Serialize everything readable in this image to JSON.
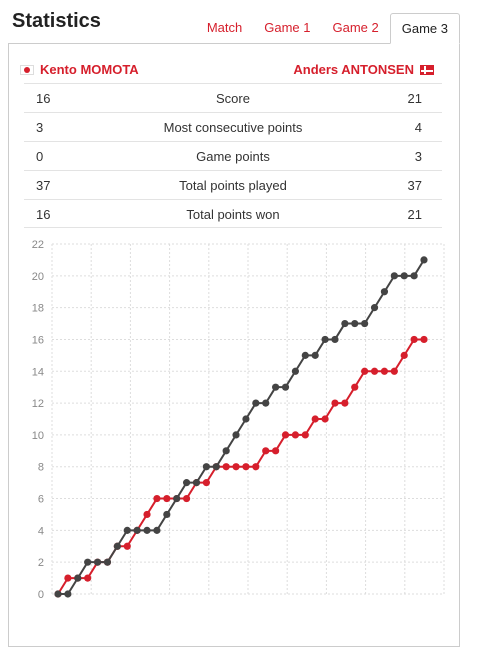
{
  "header": {
    "title": "Statistics",
    "tabs": [
      {
        "label": "Match",
        "active": false
      },
      {
        "label": "Game 1",
        "active": false
      },
      {
        "label": "Game 2",
        "active": false
      },
      {
        "label": "Game 3",
        "active": true
      }
    ]
  },
  "players": {
    "left": {
      "name": "Kento MOMOTA",
      "flag": "japan-flag-icon"
    },
    "right": {
      "name": "Anders ANTONSEN",
      "flag": "denmark-flag-icon"
    }
  },
  "stats": [
    {
      "left": "16",
      "label": "Score",
      "right": "21"
    },
    {
      "left": "3",
      "label": "Most consecutive points",
      "right": "4"
    },
    {
      "left": "0",
      "label": "Game points",
      "right": "3"
    },
    {
      "left": "37",
      "label": "Total points played",
      "right": "37"
    },
    {
      "left": "16",
      "label": "Total points won",
      "right": "21"
    }
  ],
  "colors": {
    "accent": "#d61f2c",
    "player_left": "#d61f2c",
    "player_right": "#444444"
  },
  "chart_data": {
    "type": "line",
    "title": "",
    "xlabel": "",
    "ylabel": "",
    "ylim": [
      0,
      22
    ],
    "yticks": [
      0,
      2,
      4,
      6,
      8,
      10,
      12,
      14,
      16,
      18,
      20,
      22
    ],
    "x": [
      0,
      1,
      2,
      3,
      4,
      5,
      6,
      7,
      8,
      9,
      10,
      11,
      12,
      13,
      14,
      15,
      16,
      17,
      18,
      19,
      20,
      21,
      22,
      23,
      24,
      25,
      26,
      27,
      28,
      29,
      30,
      31,
      32,
      33,
      34,
      35,
      36,
      37
    ],
    "grid": true,
    "series": [
      {
        "name": "Kento MOMOTA",
        "color": "#d61f2c",
        "values": [
          0,
          1,
          1,
          1,
          2,
          2,
          3,
          3,
          4,
          5,
          6,
          6,
          6,
          6,
          7,
          7,
          8,
          8,
          8,
          8,
          8,
          9,
          9,
          10,
          10,
          10,
          11,
          11,
          12,
          12,
          13,
          14,
          14,
          14,
          14,
          15,
          16,
          16
        ]
      },
      {
        "name": "Anders ANTONSEN",
        "color": "#444444",
        "values": [
          0,
          0,
          1,
          2,
          2,
          2,
          3,
          4,
          4,
          4,
          4,
          5,
          6,
          7,
          7,
          8,
          8,
          9,
          10,
          11,
          12,
          12,
          13,
          13,
          14,
          15,
          15,
          16,
          16,
          17,
          17,
          17,
          18,
          19,
          20,
          20,
          20,
          21
        ]
      }
    ]
  }
}
